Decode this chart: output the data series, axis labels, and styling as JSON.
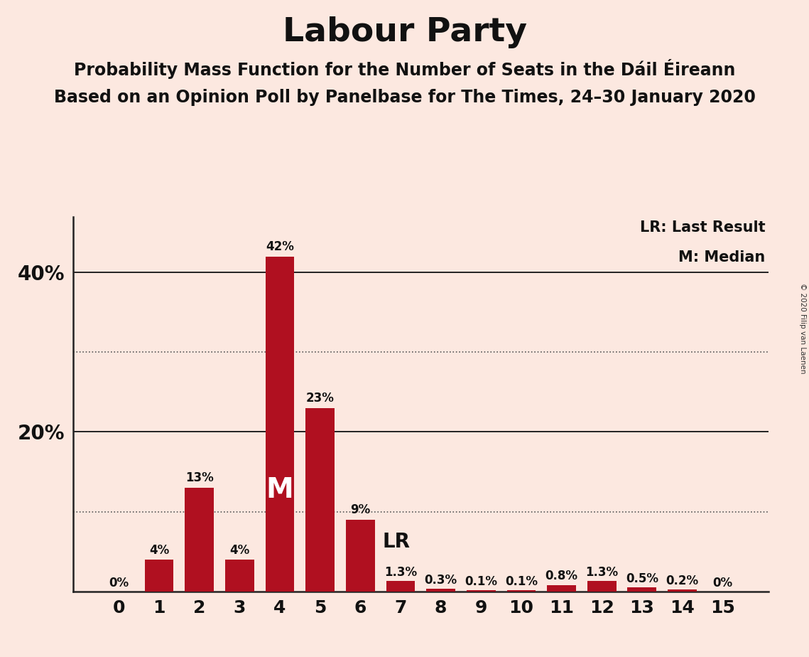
{
  "title": "Labour Party",
  "subtitle1": "Probability Mass Function for the Number of Seats in the Dáil Éireann",
  "subtitle2": "Based on an Opinion Poll by Panelbase for The Times, 24–30 January 2020",
  "copyright": "© 2020 Filip van Laenen",
  "categories": [
    0,
    1,
    2,
    3,
    4,
    5,
    6,
    7,
    8,
    9,
    10,
    11,
    12,
    13,
    14,
    15
  ],
  "values": [
    0.0,
    4.0,
    13.0,
    4.0,
    42.0,
    23.0,
    9.0,
    1.3,
    0.3,
    0.1,
    0.1,
    0.8,
    1.3,
    0.5,
    0.2,
    0.0
  ],
  "labels": [
    "0%",
    "4%",
    "13%",
    "4%",
    "42%",
    "23%",
    "9%",
    "1.3%",
    "0.3%",
    "0.1%",
    "0.1%",
    "0.8%",
    "1.3%",
    "0.5%",
    "0.2%",
    "0%"
  ],
  "bar_color": "#b01020",
  "background_color": "#fce8e0",
  "title_fontsize": 34,
  "subtitle_fontsize": 17,
  "yticks_solid": [
    20,
    40
  ],
  "yticks_dotted": [
    10,
    30
  ],
  "ytick_labels_positions": [
    20,
    40
  ],
  "ytick_labels_values": [
    "20%",
    "40%"
  ],
  "ylim": [
    0,
    47
  ],
  "median_bar": 4,
  "last_result_bar": 6,
  "legend_lr": "LR: Last Result",
  "legend_m": "M: Median",
  "annotation_m": "M",
  "annotation_lr": "LR"
}
